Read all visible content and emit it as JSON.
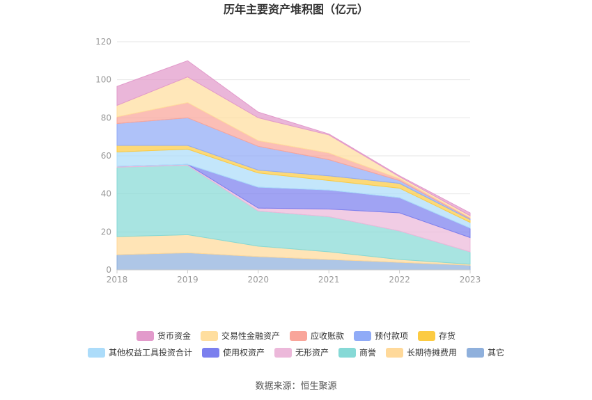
{
  "chart_data": {
    "type": "area",
    "stacked": true,
    "title": "历年主要资产堆积图（亿元）",
    "xlabel": "",
    "ylabel": "",
    "x": [
      "2018",
      "2019",
      "2020",
      "2021",
      "2022",
      "2023"
    ],
    "ylim": [
      0,
      120
    ],
    "yticks": [
      0,
      20,
      40,
      60,
      80,
      100,
      120
    ],
    "grid": true,
    "legend_position": "bottom",
    "series": [
      {
        "name": "其它",
        "color": "#8fb0dc",
        "values": [
          8.0,
          9.0,
          7.0,
          5.5,
          4.0,
          2.5
        ]
      },
      {
        "name": "长期待摊费用",
        "color": "#ffd99a",
        "values": [
          9.5,
          9.5,
          5.5,
          4.0,
          1.5,
          0.5
        ]
      },
      {
        "name": "商誉",
        "color": "#86d9d6",
        "values": [
          36.5,
          36.5,
          18.5,
          18.5,
          15.0,
          6.5
        ]
      },
      {
        "name": "无形资产",
        "color": "#ecb8da",
        "values": [
          0.5,
          0.5,
          1.5,
          4.0,
          9.5,
          7.5
        ]
      },
      {
        "name": "使用权资产",
        "color": "#7b7fee",
        "values": [
          0.0,
          0.0,
          11.0,
          10.0,
          8.0,
          5.0
        ]
      },
      {
        "name": "其他权益工具投资合计",
        "color": "#acdcfa",
        "values": [
          7.5,
          8.0,
          7.5,
          5.0,
          5.0,
          3.0
        ]
      },
      {
        "name": "存货",
        "color": "#fccb42",
        "values": [
          3.5,
          2.0,
          1.5,
          2.5,
          2.5,
          1.5
        ]
      },
      {
        "name": "预付款项",
        "color": "#90abf7",
        "values": [
          11.5,
          14.5,
          12.5,
          8.5,
          1.5,
          0.5
        ]
      },
      {
        "name": "应收账款",
        "color": "#f9a59a",
        "values": [
          3.5,
          8.0,
          3.0,
          3.5,
          1.0,
          0.5
        ]
      },
      {
        "name": "交易性金融资产",
        "color": "#ffde9e",
        "values": [
          6.0,
          13.5,
          12.0,
          9.5,
          1.0,
          1.0
        ]
      },
      {
        "name": "货币资金",
        "color": "#e29acb",
        "values": [
          10.0,
          8.5,
          3.0,
          0.5,
          0.5,
          1.5
        ]
      }
    ],
    "legend_order": [
      "货币资金",
      "交易性金融资产",
      "应收账款",
      "预付款项",
      "存货",
      "其他权益工具投资合计",
      "使用权资产",
      "无形资产",
      "商誉",
      "长期待摊费用",
      "其它"
    ]
  },
  "source": "数据来源：恒生聚源"
}
